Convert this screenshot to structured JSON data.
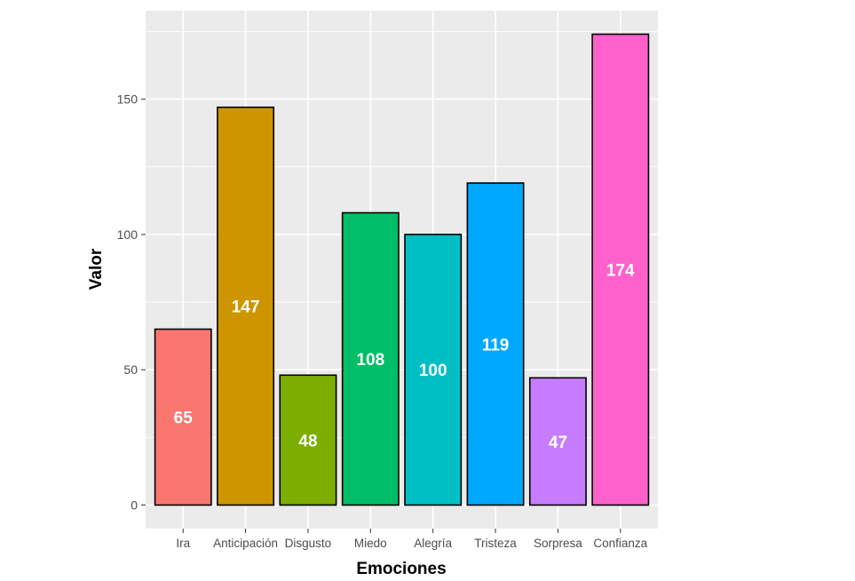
{
  "chart_data": {
    "type": "bar",
    "title": "",
    "xlabel": "Emociones",
    "ylabel": "Valor",
    "categories": [
      "Ira",
      "Anticipación",
      "Disgusto",
      "Miedo",
      "Alegría",
      "Tristeza",
      "Sorpresa",
      "Confianza"
    ],
    "values": [
      65,
      147,
      48,
      108,
      100,
      119,
      47,
      174
    ],
    "data_labels": [
      "65",
      "147",
      "48",
      "108",
      "100",
      "119",
      "47",
      "174"
    ],
    "colors": [
      "#F8766D",
      "#CD9600",
      "#7CAE00",
      "#00BE67",
      "#00BFC4",
      "#00A9FF",
      "#C77CFF",
      "#FF61CC"
    ],
    "ylim": [
      -8.7,
      182.7
    ],
    "yticks": [
      0,
      50,
      100,
      150
    ],
    "ytick_labels": [
      "0",
      "50",
      "100",
      "150"
    ],
    "grid": true,
    "legend": "none",
    "panel_background": "#EBEBEB",
    "gridline_color": "#FFFFFF",
    "label_color": "#FFFFFF",
    "bar_outline_color": "#000000"
  }
}
